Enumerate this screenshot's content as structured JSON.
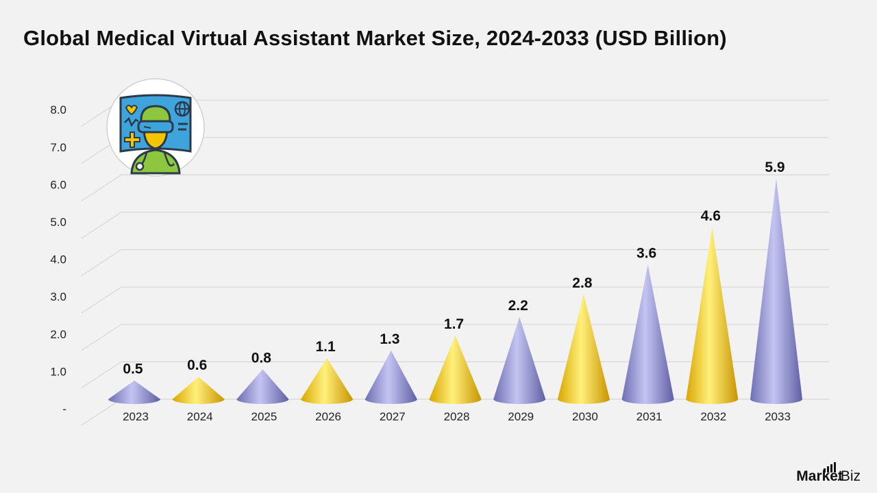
{
  "title": "Global Medical Virtual Assistant Market Size, 2024-2033 (USD Billion)",
  "logo": {
    "bold": "Market",
    "light": ".Biz"
  },
  "icon": "medical-virtual-assistant-doctor-icon",
  "colors": {
    "purple": "#8a8ad0",
    "yellow": "#f5c400",
    "background": "#f2f2f2",
    "grid": "#d6d6d6"
  },
  "chart_data": {
    "type": "bar",
    "bar_shape": "cone",
    "title": "Global Medical Virtual Assistant Market Size, 2024-2033 (USD Billion)",
    "xlabel": "",
    "ylabel": "",
    "categories": [
      "2023",
      "2024",
      "2025",
      "2026",
      "2027",
      "2028",
      "2029",
      "2030",
      "2031",
      "2032",
      "2033"
    ],
    "values": [
      0.5,
      0.6,
      0.8,
      1.1,
      1.3,
      1.7,
      2.2,
      2.8,
      3.6,
      4.6,
      5.9
    ],
    "data_labels": [
      "0.5",
      "0.6",
      "0.8",
      "1.1",
      "1.3",
      "1.7",
      "2.2",
      "2.8",
      "3.6",
      "4.6",
      "5.9"
    ],
    "bar_colors": [
      "purple",
      "yellow",
      "purple",
      "yellow",
      "purple",
      "yellow",
      "purple",
      "yellow",
      "purple",
      "yellow",
      "purple"
    ],
    "y_ticks": [
      "-",
      "1.0",
      "2.0",
      "3.0",
      "4.0",
      "5.0",
      "6.0",
      "7.0",
      "8.0"
    ],
    "ylim": [
      0,
      8
    ],
    "grid": true,
    "legend": "none"
  }
}
